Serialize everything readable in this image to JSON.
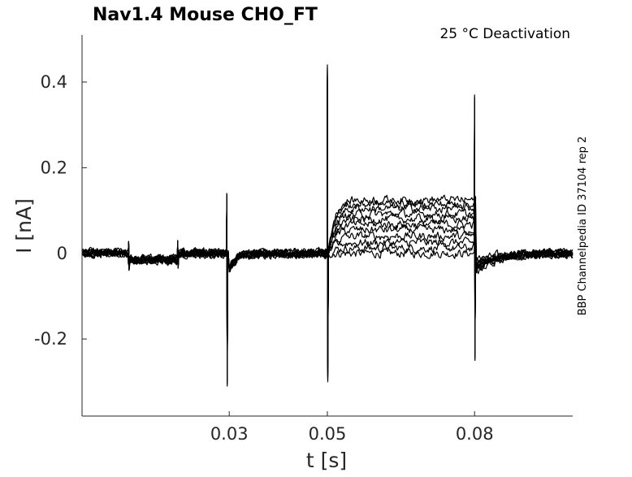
{
  "chart_data": {
    "type": "line",
    "title": "Nav1.4  Mouse  CHO_FT",
    "annotation": "25 °C  Deactivation",
    "side_label": "BBP Channelpedia ID 37104 rep 2",
    "xlabel": "t [s]",
    "ylabel": "I [nA]",
    "xlim": [
      0.0,
      0.1
    ],
    "ylim": [
      -0.38,
      0.51
    ],
    "x_ticks": [
      0.03,
      0.05,
      0.08
    ],
    "x_tick_labels": [
      "0.03",
      "0.05",
      "0.08"
    ],
    "y_ticks": [
      0.4,
      0.2,
      0,
      -0.2
    ],
    "y_tick_labels": [
      "0.4",
      "0.2",
      "0",
      "-0.2"
    ],
    "grid": false,
    "line_color": "#000000",
    "protocol": {
      "baseline": 0.0,
      "pre_pulse_window": [
        0.0095,
        0.0195
      ],
      "pre_pulse_level": -0.015,
      "tail_window": [
        0.0502,
        0.0803
      ],
      "tail_steady_levels": [
        0.0,
        0.012,
        0.025,
        0.04,
        0.055,
        0.068,
        0.08,
        0.092,
        0.105,
        0.115,
        0.125
      ],
      "post_undershoot": -0.045
    },
    "transients": [
      {
        "t": 0.0095,
        "peak": 0.028,
        "trough": -0.04
      },
      {
        "t": 0.0195,
        "peak": 0.03,
        "trough": -0.035
      },
      {
        "t": 0.0295,
        "peak": 0.14,
        "trough": -0.31
      },
      {
        "t": 0.05,
        "peak": 0.44,
        "trough": -0.3
      },
      {
        "t": 0.08,
        "peak": 0.37,
        "trough": -0.25
      }
    ],
    "series_count": 11
  }
}
